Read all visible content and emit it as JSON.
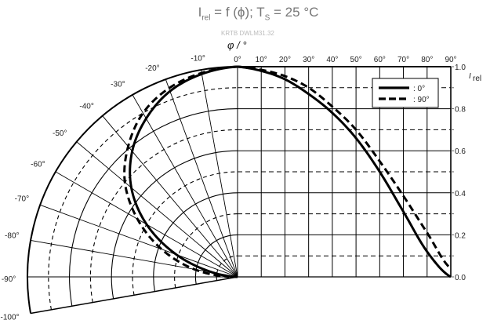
{
  "chart_data": {
    "type": "line",
    "title": {
      "main": "I",
      "main_sub": "rel",
      "mid": " = f (ϕ); T",
      "mid_sub": "S",
      "end": " = 25 °C"
    },
    "subtitle": "KRTB DWLM31.32",
    "xlabel": "φ / °",
    "ylabel": "I",
    "ylabel_sub": "rel",
    "x_ticks": [
      "0°",
      "10°",
      "20°",
      "30°",
      "40°",
      "50°",
      "60°",
      "70°",
      "80°",
      "90°"
    ],
    "polar_ticks": [
      "-10°",
      "-20°",
      "-30°",
      "-40°",
      "-50°",
      "-60°",
      "-70°",
      "-80°",
      "-90°",
      "-100°"
    ],
    "y_ticks": [
      "0.0",
      "0.2",
      "0.4",
      "0.6",
      "0.8",
      "1.0"
    ],
    "xlim": [
      0,
      90
    ],
    "ylim": [
      0,
      1.0
    ],
    "grid": true,
    "legend_position": "top-right",
    "x": [
      0,
      10,
      20,
      30,
      40,
      50,
      60,
      70,
      80,
      90
    ],
    "series": [
      {
        "name": ": 0°",
        "style": "solid",
        "values": [
          1.0,
          0.98,
          0.94,
          0.87,
          0.78,
          0.66,
          0.5,
          0.31,
          0.12,
          0.0
        ]
      },
      {
        "name": ": 90°",
        "style": "dashed",
        "values": [
          1.0,
          0.985,
          0.955,
          0.9,
          0.81,
          0.7,
          0.55,
          0.385,
          0.21,
          0.04
        ]
      }
    ],
    "colors": {
      "line": "#000000",
      "grid": "#000000",
      "title": "#777777"
    }
  }
}
